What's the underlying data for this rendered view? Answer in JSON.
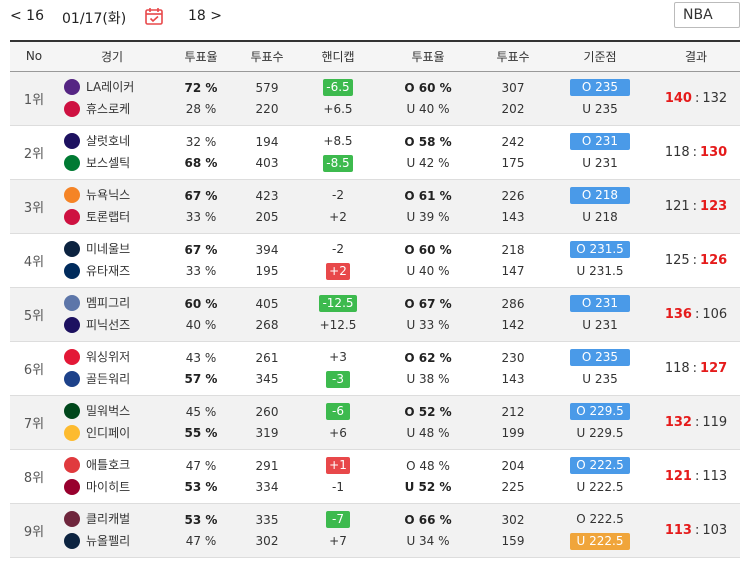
{
  "nav": {
    "prev": "< 16",
    "date": "01/17(화)",
    "next": "18 >",
    "league": "NBA"
  },
  "colors": {
    "green": "#3dba4e",
    "red": "#e8484a",
    "blue": "#4a9ae8",
    "orange": "#f0a53b",
    "win": "#e51b1b"
  },
  "headers": [
    "No",
    "경기",
    "투표율",
    "투표수",
    "핸디캡",
    "투표율",
    "투표수",
    "기준점",
    "결과"
  ],
  "games": [
    {
      "rank": "1위",
      "home": "LA레이커",
      "away": "휴스로케",
      "home_pct": "72 %",
      "away_pct": "28 %",
      "home_votes": "579",
      "away_votes": "220",
      "hc_home": "-6.5",
      "hc_away": "+6.5",
      "hc_home_style": "green",
      "hc_away_style": "",
      "over_pct": "O 60 %",
      "under_pct": "U 40 %",
      "over_votes": "307",
      "under_votes": "202",
      "ou_over": "O 235",
      "ou_under": "U 235",
      "ou_over_style": "blue",
      "ou_under_style": "",
      "score_left": "140",
      "score_right": "132",
      "winner": "left",
      "bold_pct": "home",
      "bold_ou": "over",
      "home_logo": "#552583",
      "away_logo": "#ce1141"
    },
    {
      "rank": "2위",
      "home": "샬럿호네",
      "away": "보스셀틱",
      "home_pct": "32 %",
      "away_pct": "68 %",
      "home_votes": "194",
      "away_votes": "403",
      "hc_home": "+8.5",
      "hc_away": "-8.5",
      "hc_home_style": "",
      "hc_away_style": "green",
      "over_pct": "O 58 %",
      "under_pct": "U 42 %",
      "over_votes": "242",
      "under_votes": "175",
      "ou_over": "O 231",
      "ou_under": "U 231",
      "ou_over_style": "blue",
      "ou_under_style": "",
      "score_left": "118",
      "score_right": "130",
      "winner": "right",
      "bold_pct": "away",
      "bold_ou": "over",
      "home_logo": "#1d1160",
      "away_logo": "#007a33"
    },
    {
      "rank": "3위",
      "home": "뉴욕닉스",
      "away": "토론랩터",
      "home_pct": "67 %",
      "away_pct": "33 %",
      "home_votes": "423",
      "away_votes": "205",
      "hc_home": "-2",
      "hc_away": "+2",
      "hc_home_style": "",
      "hc_away_style": "",
      "over_pct": "O 61 %",
      "under_pct": "U 39 %",
      "over_votes": "226",
      "under_votes": "143",
      "ou_over": "O 218",
      "ou_under": "U 218",
      "ou_over_style": "blue",
      "ou_under_style": "",
      "score_left": "121",
      "score_right": "123",
      "winner": "right",
      "bold_pct": "home",
      "bold_ou": "over",
      "home_logo": "#f58426",
      "away_logo": "#ce1141"
    },
    {
      "rank": "4위",
      "home": "미네울브",
      "away": "유타재즈",
      "home_pct": "67 %",
      "away_pct": "33 %",
      "home_votes": "394",
      "away_votes": "195",
      "hc_home": "-2",
      "hc_away": "+2",
      "hc_home_style": "",
      "hc_away_style": "red",
      "over_pct": "O 60 %",
      "under_pct": "U 40 %",
      "over_votes": "218",
      "under_votes": "147",
      "ou_over": "O 231.5",
      "ou_under": "U 231.5",
      "ou_over_style": "blue",
      "ou_under_style": "",
      "score_left": "125",
      "score_right": "126",
      "winner": "right",
      "bold_pct": "home",
      "bold_ou": "over",
      "home_logo": "#0c2340",
      "away_logo": "#002b5c"
    },
    {
      "rank": "5위",
      "home": "멤피그리",
      "away": "피닉선즈",
      "home_pct": "60 %",
      "away_pct": "40 %",
      "home_votes": "405",
      "away_votes": "268",
      "hc_home": "-12.5",
      "hc_away": "+12.5",
      "hc_home_style": "green",
      "hc_away_style": "",
      "over_pct": "O 67 %",
      "under_pct": "U 33 %",
      "over_votes": "286",
      "under_votes": "142",
      "ou_over": "O 231",
      "ou_under": "U 231",
      "ou_over_style": "blue",
      "ou_under_style": "",
      "score_left": "136",
      "score_right": "106",
      "winner": "left",
      "bold_pct": "home",
      "bold_ou": "over",
      "home_logo": "#5d76a9",
      "away_logo": "#1d1160"
    },
    {
      "rank": "6위",
      "home": "워싱위저",
      "away": "골든워리",
      "home_pct": "43 %",
      "away_pct": "57 %",
      "home_votes": "261",
      "away_votes": "345",
      "hc_home": "+3",
      "hc_away": "-3",
      "hc_home_style": "",
      "hc_away_style": "green",
      "over_pct": "O 62 %",
      "under_pct": "U 38 %",
      "over_votes": "230",
      "under_votes": "143",
      "ou_over": "O 235",
      "ou_under": "U 235",
      "ou_over_style": "blue",
      "ou_under_style": "",
      "score_left": "118",
      "score_right": "127",
      "winner": "right",
      "bold_pct": "away",
      "bold_ou": "over",
      "home_logo": "#e31837",
      "away_logo": "#1d428a"
    },
    {
      "rank": "7위",
      "home": "밀워벅스",
      "away": "인디페이",
      "home_pct": "45 %",
      "away_pct": "55 %",
      "home_votes": "260",
      "away_votes": "319",
      "hc_home": "-6",
      "hc_away": "+6",
      "hc_home_style": "green",
      "hc_away_style": "",
      "over_pct": "O 52 %",
      "under_pct": "U 48 %",
      "over_votes": "212",
      "under_votes": "199",
      "ou_over": "O 229.5",
      "ou_under": "U 229.5",
      "ou_over_style": "blue",
      "ou_under_style": "",
      "score_left": "132",
      "score_right": "119",
      "winner": "left",
      "bold_pct": "away",
      "bold_ou": "over",
      "home_logo": "#00471b",
      "away_logo": "#fdbb30"
    },
    {
      "rank": "8위",
      "home": "애틀호크",
      "away": "마이히트",
      "home_pct": "47 %",
      "away_pct": "53 %",
      "home_votes": "291",
      "away_votes": "334",
      "hc_home": "+1",
      "hc_away": "-1",
      "hc_home_style": "red",
      "hc_away_style": "",
      "over_pct": "O 48 %",
      "under_pct": "U 52 %",
      "over_votes": "204",
      "under_votes": "225",
      "ou_over": "O 222.5",
      "ou_under": "U 222.5",
      "ou_over_style": "blue",
      "ou_under_style": "",
      "score_left": "121",
      "score_right": "113",
      "winner": "left",
      "bold_pct": "away",
      "bold_ou": "under",
      "home_logo": "#e03a3e",
      "away_logo": "#98002e"
    },
    {
      "rank": "9위",
      "home": "클리캐벌",
      "away": "뉴올펠리",
      "home_pct": "53 %",
      "away_pct": "47 %",
      "home_votes": "335",
      "away_votes": "302",
      "hc_home": "-7",
      "hc_away": "+7",
      "hc_home_style": "green",
      "hc_away_style": "",
      "over_pct": "O 66 %",
      "under_pct": "U 34 %",
      "over_votes": "302",
      "under_votes": "159",
      "ou_over": "O 222.5",
      "ou_under": "U 222.5",
      "ou_over_style": "",
      "ou_under_style": "orange",
      "score_left": "113",
      "score_right": "103",
      "winner": "left",
      "bold_pct": "home",
      "bold_ou": "over",
      "home_logo": "#6f263d",
      "away_logo": "#0c2340"
    }
  ]
}
